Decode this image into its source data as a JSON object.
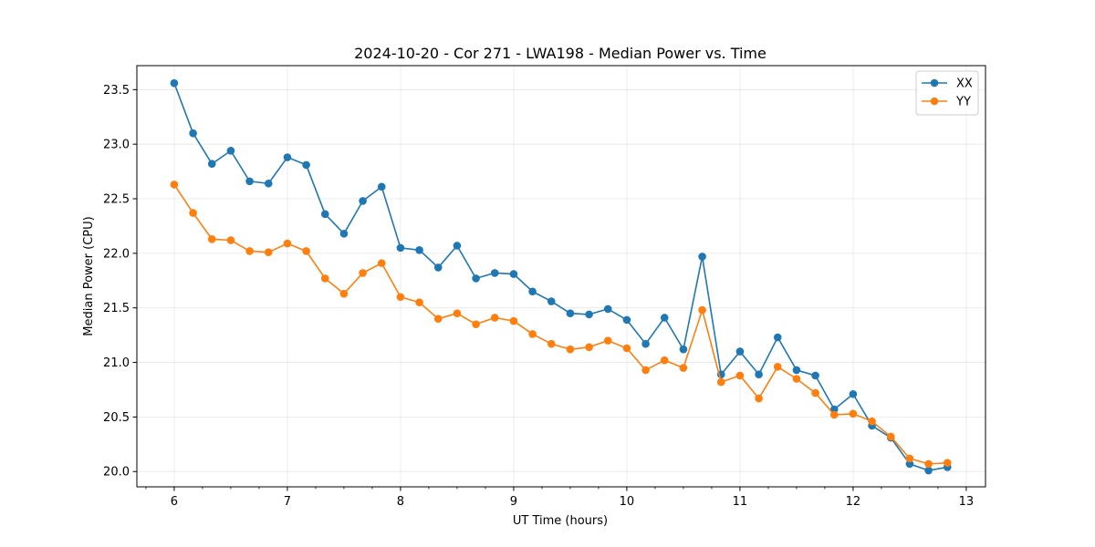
{
  "chart_data": {
    "type": "line",
    "title": "2024-10-20 - Cor 271 - LWA198 - Median Power vs. Time",
    "xlabel": "UT Time (hours)",
    "ylabel": "Median Power (CPU)",
    "xlim": [
      5.67,
      13.17
    ],
    "ylim": [
      19.86,
      23.72
    ],
    "xticks": [
      6,
      7,
      8,
      9,
      10,
      11,
      12,
      13
    ],
    "xtick_labels": [
      "6",
      "7",
      "8",
      "9",
      "10",
      "11",
      "12",
      "13"
    ],
    "yticks": [
      20.0,
      20.5,
      21.0,
      21.5,
      22.0,
      22.5,
      23.0,
      23.5
    ],
    "ytick_labels": [
      "20.0",
      "20.5",
      "21.0",
      "21.5",
      "22.0",
      "22.5",
      "23.0",
      "23.5"
    ],
    "x_minor_step": 0.25,
    "grid": true,
    "legend_position": "top-right",
    "x": [
      6.0,
      6.1667,
      6.3333,
      6.5,
      6.6667,
      6.8333,
      7.0,
      7.1667,
      7.3333,
      7.5,
      7.6667,
      7.8333,
      8.0,
      8.1667,
      8.3333,
      8.5,
      8.6667,
      8.8333,
      9.0,
      9.1667,
      9.3333,
      9.5,
      9.6667,
      9.8333,
      10.0,
      10.1667,
      10.3333,
      10.5,
      10.6667,
      10.8333,
      11.0,
      11.1667,
      11.3333,
      11.5,
      11.6667,
      11.8333,
      12.0,
      12.1667,
      12.3333,
      12.5,
      12.6667,
      12.8333
    ],
    "series": [
      {
        "name": "XX",
        "color": "#1f77b4",
        "values": [
          23.56,
          23.1,
          22.82,
          22.94,
          22.66,
          22.64,
          22.88,
          22.81,
          22.36,
          22.18,
          22.48,
          22.61,
          22.05,
          22.03,
          21.87,
          22.07,
          21.77,
          21.82,
          21.81,
          21.65,
          21.56,
          21.45,
          21.44,
          21.49,
          21.39,
          21.17,
          21.41,
          21.12,
          21.97,
          20.89,
          21.1,
          20.89,
          21.23,
          20.93,
          20.88,
          20.57,
          20.71,
          20.42,
          20.31,
          20.07,
          20.01,
          20.04
        ]
      },
      {
        "name": "YY",
        "color": "#ff7f0e",
        "values": [
          22.63,
          22.37,
          22.13,
          22.12,
          22.02,
          22.01,
          22.09,
          22.02,
          21.77,
          21.63,
          21.82,
          21.91,
          21.6,
          21.55,
          21.4,
          21.45,
          21.35,
          21.41,
          21.38,
          21.26,
          21.17,
          21.12,
          21.14,
          21.2,
          21.13,
          20.93,
          21.02,
          20.95,
          21.48,
          20.82,
          20.88,
          20.67,
          20.96,
          20.85,
          20.72,
          20.52,
          20.53,
          20.46,
          20.32,
          20.12,
          20.07,
          20.08
        ]
      }
    ]
  }
}
